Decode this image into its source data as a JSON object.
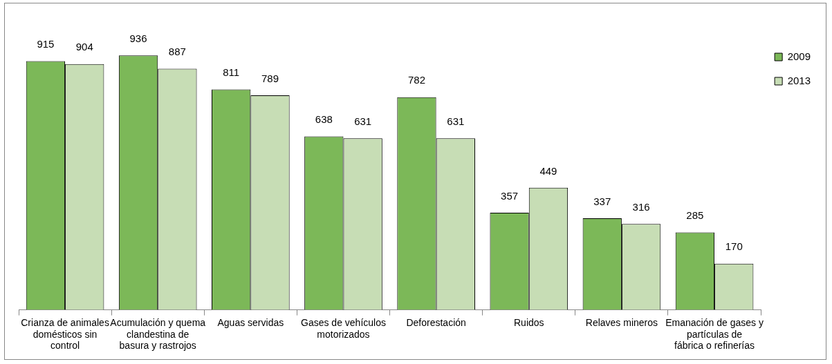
{
  "chart_data": {
    "type": "bar",
    "categories": [
      "Crianza de animales domésticos sin control",
      "Acumulación y quema clandestina de basura y rastrojos",
      "Aguas servidas",
      "Gases de vehículos motorizados",
      "Deforestación",
      "Ruidos",
      "Relaves mineros",
      "Emanación de gases y partículas de fábrica o refinerías"
    ],
    "series": [
      {
        "name": "2009",
        "color": "#7cb858",
        "values": [
          915,
          936,
          811,
          638,
          782,
          357,
          337,
          285
        ]
      },
      {
        "name": "2013",
        "color": "#c7ddb5",
        "values": [
          904,
          887,
          789,
          631,
          631,
          449,
          316,
          170
        ]
      }
    ],
    "data_labels": true,
    "legend": "right",
    "grid": false
  }
}
